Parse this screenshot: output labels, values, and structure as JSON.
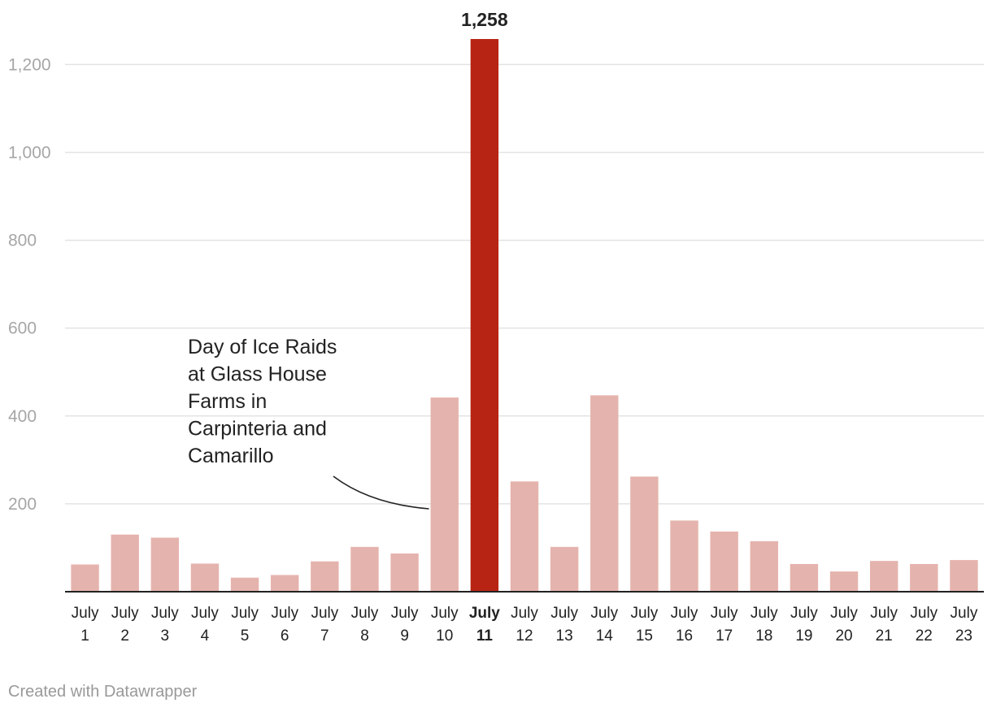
{
  "chart_data": {
    "type": "bar",
    "title": "",
    "xlabel": "",
    "ylabel": "",
    "ylim": [
      0,
      1258
    ],
    "yticks": [
      200,
      400,
      600,
      800,
      1000,
      1200
    ],
    "ytick_labels": [
      "200",
      "400",
      "600",
      "800",
      "1,000",
      "1,200"
    ],
    "grid": true,
    "categories": [
      {
        "line1": "July",
        "line2": "1"
      },
      {
        "line1": "July",
        "line2": "2"
      },
      {
        "line1": "July",
        "line2": "3"
      },
      {
        "line1": "July",
        "line2": "4"
      },
      {
        "line1": "July",
        "line2": "5"
      },
      {
        "line1": "July",
        "line2": "6"
      },
      {
        "line1": "July",
        "line2": "7"
      },
      {
        "line1": "July",
        "line2": "8"
      },
      {
        "line1": "July",
        "line2": "9"
      },
      {
        "line1": "July",
        "line2": "10"
      },
      {
        "line1": "July",
        "line2": "11"
      },
      {
        "line1": "July",
        "line2": "12"
      },
      {
        "line1": "July",
        "line2": "13"
      },
      {
        "line1": "July",
        "line2": "14"
      },
      {
        "line1": "July",
        "line2": "15"
      },
      {
        "line1": "July",
        "line2": "16"
      },
      {
        "line1": "July",
        "line2": "17"
      },
      {
        "line1": "July",
        "line2": "18"
      },
      {
        "line1": "July",
        "line2": "19"
      },
      {
        "line1": "July",
        "line2": "20"
      },
      {
        "line1": "July",
        "line2": "21"
      },
      {
        "line1": "July",
        "line2": "22"
      },
      {
        "line1": "July",
        "line2": "23"
      }
    ],
    "values": [
      62,
      130,
      123,
      64,
      32,
      38,
      69,
      102,
      87,
      442,
      1258,
      251,
      102,
      447,
      262,
      162,
      137,
      115,
      63,
      46,
      70,
      63,
      72
    ],
    "highlight_index": 10,
    "highlight_label": "1,258",
    "colors": {
      "bar": "#e5b3ad",
      "highlight": "#b82414"
    },
    "annotation": {
      "lines": [
        "Day of Ice Raids",
        "at Glass House",
        "Farms in",
        "Carpinteria and",
        "Camarillo"
      ],
      "target_index": 9
    }
  },
  "footer": {
    "credit": "Created with Datawrapper"
  }
}
